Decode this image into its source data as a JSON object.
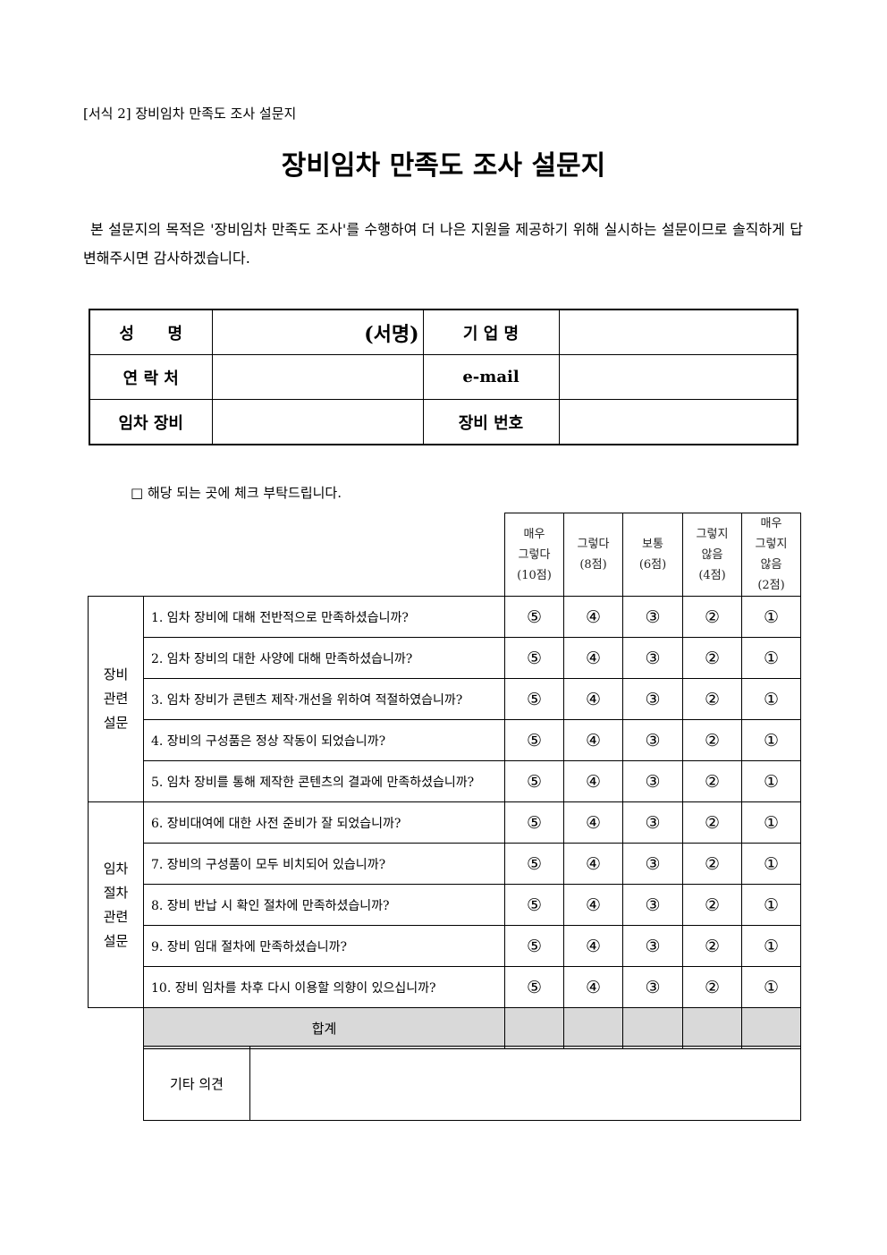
{
  "form_label": "[서식 2] 장비임차 만족도 조사 설문지",
  "title": "장비임차 만족도 조사 설문지",
  "intro": "본 설문지의 목적은 '장비임차 만족도 조사'를 수행하여 더 나은 지원을 제공하기 위해 실시하는 설문이므로 솔직하게 답변해주시면 감사하겠습니다.",
  "info": {
    "name_label": "성      명",
    "signature": "(서명)",
    "company_label": "기 업 명",
    "contact_label": "연 락 처",
    "email_label": "e-mail",
    "equipment_label": "임차 장비",
    "equipment_no_label": "장비 번호"
  },
  "check_note": "□ 해당 되는 곳에 체크 부탁드립니다.",
  "scale": [
    {
      "line1": "매우",
      "line2": "그렇다",
      "line3": "(10점)"
    },
    {
      "line1": "",
      "line2": "그렇다",
      "line3": "(8점)"
    },
    {
      "line1": "",
      "line2": "보통",
      "line3": "(6점)"
    },
    {
      "line1": "그렇지",
      "line2": "않음",
      "line3": "(4점)"
    },
    {
      "line1": "매우",
      "line2": "그렇지",
      "line3": "않음",
      "line4": "(2점)"
    }
  ],
  "options": [
    "⑤",
    "④",
    "③",
    "②",
    "①"
  ],
  "categories": [
    {
      "label_lines": [
        "장비",
        "관련",
        "설문"
      ]
    },
    {
      "label_lines": [
        "임차",
        "절차",
        "관련",
        "설문"
      ]
    }
  ],
  "questions": [
    "1. 임차 장비에 대해 전반적으로 만족하셨습니까?",
    "2. 임차 장비의 대한 사양에 대해 만족하셨습니까?",
    "3. 임차 장비가 콘텐츠 제작·개선을 위하여 적절하였습니까?",
    "4. 장비의 구성품은 정상 작동이 되었습니까?",
    "5. 임차 장비를 통해 제작한 콘텐츠의 결과에 만족하셨습니까?",
    "6. 장비대여에 대한 사전 준비가 잘 되었습니까?",
    "7. 장비의 구성품이 모두 비치되어 있습니까?",
    "8. 장비 반납 시 확인 절차에 만족하셨습니까?",
    "9. 장비 임대 절차에 만족하셨습니까?",
    "10. 장비 임차를 차후 다시 이용할 의향이 있으십니까?"
  ],
  "total_label": "합계",
  "other_label": "기타 의견",
  "colors": {
    "total_row_bg": "#d9d9d9"
  }
}
